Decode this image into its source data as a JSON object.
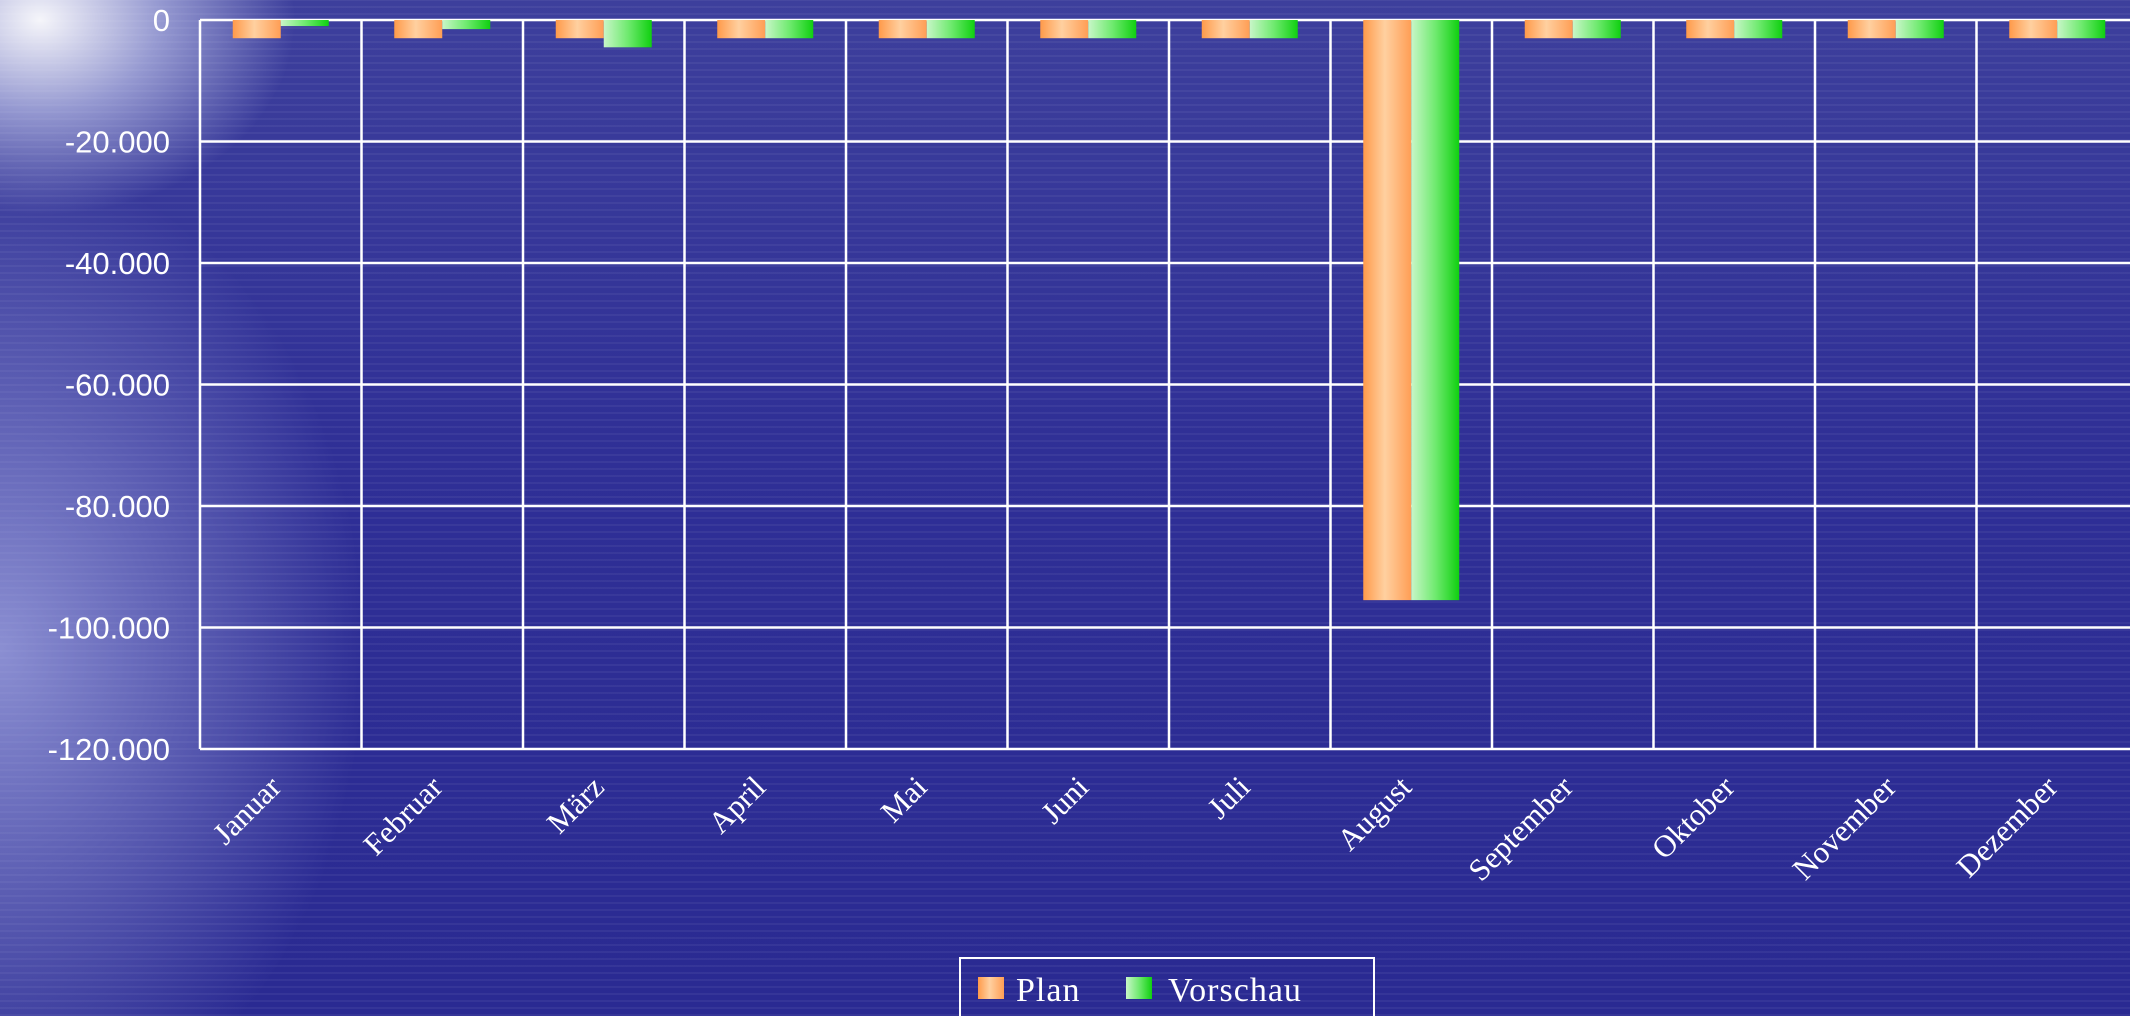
{
  "chart_data": {
    "type": "bar",
    "categories": [
      "Januar",
      "Februar",
      "März",
      "April",
      "Mai",
      "Juni",
      "Juli",
      "August",
      "September",
      "Oktober",
      "November",
      "Dezember"
    ],
    "series": [
      {
        "name": "Plan",
        "color": "#ffb070",
        "values": [
          -3000,
          -3000,
          -3000,
          -3000,
          -3000,
          -3000,
          -3000,
          -95500,
          -3000,
          -3000,
          -3000,
          -3000
        ]
      },
      {
        "name": "Vorschau",
        "color": "#33e033",
        "values": [
          -1000,
          -1500,
          -4500,
          -3000,
          -3000,
          -3000,
          -3000,
          -95500,
          -3000,
          -3000,
          -3000,
          -3000
        ]
      }
    ],
    "ylim": [
      -120000,
      0
    ],
    "yticks": [
      0,
      -20000,
      -40000,
      -60000,
      -80000,
      -100000,
      -120000
    ],
    "ytick_labels": [
      "0",
      "-20.000",
      "-40.000",
      "-60.000",
      "-80.000",
      "-100.000",
      "-120.000"
    ],
    "grid": true,
    "legend_position": "bottom-center",
    "title": "",
    "xlabel": "",
    "ylabel": ""
  }
}
